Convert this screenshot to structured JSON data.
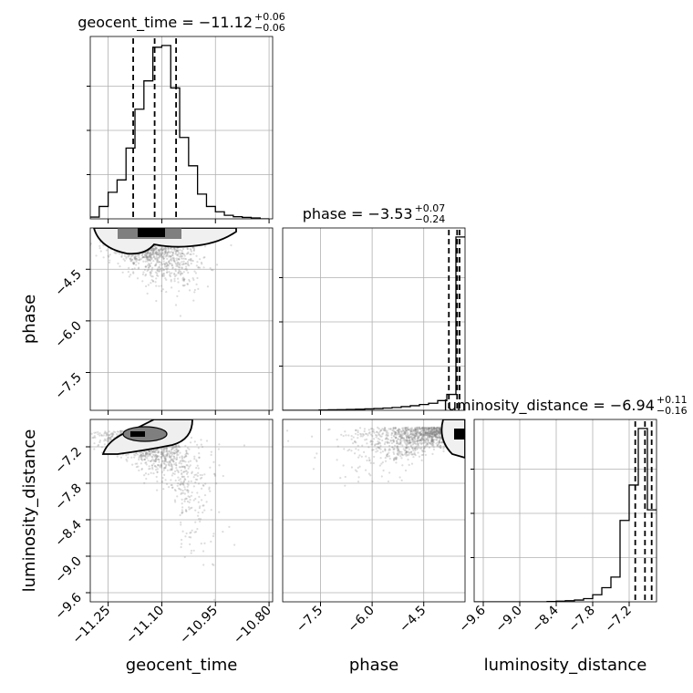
{
  "chart_data": {
    "type": "corner",
    "parameters": [
      "geocent_time",
      "phase",
      "luminosity_distance"
    ],
    "axis_labels": {
      "geocent_time": "geocent_time",
      "phase": "phase",
      "luminosity_distance": "luminosity_distance"
    },
    "ranges": {
      "geocent_time": [
        -11.3,
        -10.79
      ],
      "phase": [
        -8.6,
        -3.3
      ],
      "luminosity_distance": [
        -9.75,
        -6.75
      ]
    },
    "ticks": {
      "geocent_time": [
        -11.25,
        -11.1,
        -10.95,
        -10.8
      ],
      "phase": [
        -7.5,
        -6.0,
        -4.5
      ],
      "luminosity_distance": [
        -9.6,
        -9.0,
        -8.4,
        -7.8,
        -7.2
      ]
    },
    "tick_labels": {
      "geocent_time": [
        "−11.25",
        "−11.10",
        "−10.95",
        "−10.80"
      ],
      "phase": [
        "−7.5",
        "−6.0",
        "−4.5"
      ],
      "luminosity_distance": [
        "−9.6",
        "−9.0",
        "−8.4",
        "−7.8",
        "−7.2"
      ]
    },
    "titles": [
      {
        "param": "geocent_time",
        "main": "geocent_time = −11.12",
        "sup": "+0.06",
        "sub": "−0.06"
      },
      {
        "param": "phase",
        "main": "phase = −3.53",
        "sup": "+0.07",
        "sub": "−0.24"
      },
      {
        "param": "luminosity_distance",
        "main": "luminosity_distance = −6.94",
        "sup": "+0.11",
        "sub": "−0.16"
      }
    ],
    "quantiles": {
      "geocent_time": [
        -11.18,
        -11.12,
        -11.06
      ],
      "phase": [
        -3.77,
        -3.53,
        -3.46
      ],
      "luminosity_distance": [
        -7.1,
        -6.94,
        -6.83
      ]
    },
    "histograms": {
      "geocent_time": {
        "edges": [
          -11.3,
          -11.275,
          -11.25,
          -11.225,
          -11.2,
          -11.175,
          -11.15,
          -11.125,
          -11.1,
          -11.075,
          -11.05,
          -11.025,
          -11.0,
          -10.975,
          -10.95,
          -10.925,
          -10.9,
          -10.875,
          -10.85,
          -10.825,
          -10.8
        ],
        "counts": [
          0.01,
          0.07,
          0.15,
          0.22,
          0.4,
          0.62,
          0.78,
          0.97,
          0.98,
          0.74,
          0.46,
          0.3,
          0.14,
          0.07,
          0.04,
          0.02,
          0.012,
          0.008,
          0.005,
          0.0
        ]
      },
      "phase": {
        "edges": [
          -8.6,
          -8.335,
          -8.07,
          -7.805,
          -7.54,
          -7.275,
          -7.01,
          -6.745,
          -6.48,
          -6.215,
          -5.95,
          -5.685,
          -5.42,
          -5.155,
          -4.89,
          -4.625,
          -4.36,
          -4.095,
          -3.83,
          -3.565,
          -3.3
        ],
        "counts": [
          0.0,
          0.0,
          0.0,
          0.0,
          0.002,
          0.003,
          0.004,
          0.005,
          0.006,
          0.008,
          0.01,
          0.013,
          0.016,
          0.021,
          0.026,
          0.033,
          0.04,
          0.055,
          0.09,
          0.98
        ]
      },
      "luminosity_distance": {
        "edges": [
          -9.75,
          -9.6,
          -9.45,
          -9.3,
          -9.15,
          -9.0,
          -8.85,
          -8.7,
          -8.55,
          -8.4,
          -8.25,
          -8.1,
          -7.95,
          -7.8,
          -7.65,
          -7.5,
          -7.35,
          -7.2,
          -7.05,
          -6.9,
          -6.75
        ],
        "counts": [
          0.0,
          0.0,
          0.0,
          0.0,
          0.0,
          0.0,
          0.0,
          0.0,
          0.002,
          0.004,
          0.006,
          0.01,
          0.018,
          0.04,
          0.08,
          0.14,
          0.46,
          0.66,
          0.98,
          0.52
        ]
      }
    },
    "scatter_summary": {
      "geocent_time_vs_phase": {
        "x_mean": -11.12,
        "x_sd": 0.06,
        "y_mode": -3.55
      },
      "geocent_time_vs_luminosity_distance": {
        "x_mean": -11.12,
        "x_sd": 0.06,
        "y_mode": -6.94
      },
      "phase_vs_luminosity_distance": {
        "x_mode": -3.55,
        "y_mode": -6.94
      }
    },
    "grid": true,
    "colors": {
      "line": "#000000",
      "points": "#808080",
      "grid": "#b0b0b0",
      "contour_dark": "#000000",
      "contour_mid": "#7f7f7f",
      "contour_light": "#d9d9d9"
    }
  }
}
